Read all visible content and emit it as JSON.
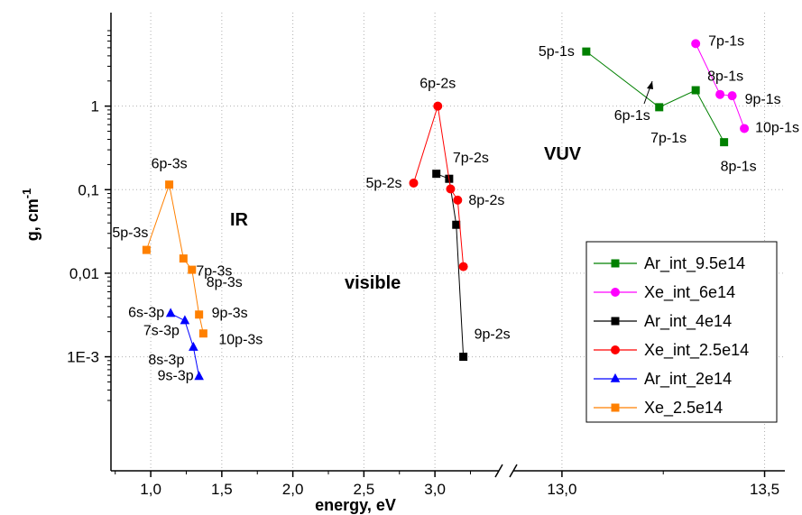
{
  "chart_data": {
    "type": "line",
    "xlabel": "energy, eV",
    "ylabel": "g, cm",
    "ylabel_sup": "-1",
    "y_scale": "log",
    "ylim": [
      0.0003,
      8
    ],
    "x_axis_break": true,
    "x_segments": [
      {
        "range": [
          0.72,
          3.45
        ],
        "ticks": [
          1.0,
          1.5,
          2.0,
          2.5,
          3.0
        ],
        "tick_labels": [
          "1,0",
          "1,5",
          "2,0",
          "2,5",
          "3,0"
        ]
      },
      {
        "range": [
          12.88,
          13.55
        ],
        "ticks": [
          13.0,
          13.5
        ],
        "tick_labels": [
          "13,0",
          "13,5"
        ]
      }
    ],
    "y_ticks": [
      0.001,
      0.01,
      0.1,
      1
    ],
    "y_tick_labels": [
      "1E-3",
      "0,01",
      "0,1",
      "1"
    ],
    "grid": "dotted",
    "legend_position": "bottom-right",
    "series": [
      {
        "name": "Ar_int_9.5e14",
        "color": "#008000",
        "marker": "square",
        "points": [
          {
            "x": 13.06,
            "y": 4.5,
            "label": "5p-1s"
          },
          {
            "x": 13.24,
            "y": 0.97,
            "label": "6p-1s"
          },
          {
            "x": 13.33,
            "y": 1.55,
            "label": "7p-1s"
          },
          {
            "x": 13.4,
            "y": 0.37,
            "label": "8p-1s"
          }
        ]
      },
      {
        "name": "Xe_int_6e14",
        "color": "#ff00ff",
        "marker": "circle",
        "points": [
          {
            "x": 13.33,
            "y": 5.6,
            "label": "7p-1s"
          },
          {
            "x": 13.39,
            "y": 1.38,
            "label": "8p-1s"
          },
          {
            "x": 13.42,
            "y": 1.33,
            "label": "9p-1s"
          },
          {
            "x": 13.45,
            "y": 0.54,
            "label": "10p-1s"
          }
        ]
      },
      {
        "name": "Ar_int_4e14",
        "color": "#000000",
        "marker": "square",
        "points": [
          {
            "x": 3.01,
            "y": 0.155,
            "label": ""
          },
          {
            "x": 3.1,
            "y": 0.135,
            "label": "7p-2s"
          },
          {
            "x": 3.15,
            "y": 0.038,
            "label": ""
          },
          {
            "x": 3.2,
            "y": 0.001,
            "label": "9p-2s"
          }
        ]
      },
      {
        "name": "Xe_int_2.5e14",
        "color": "#ff0000",
        "marker": "circle",
        "points": [
          {
            "x": 2.85,
            "y": 0.12,
            "label": "5p-2s"
          },
          {
            "x": 3.02,
            "y": 1.0,
            "label": "6p-2s"
          },
          {
            "x": 3.11,
            "y": 0.102,
            "label": ""
          },
          {
            "x": 3.16,
            "y": 0.075,
            "label": "8p-2s"
          },
          {
            "x": 3.2,
            "y": 0.012,
            "label": ""
          }
        ]
      },
      {
        "name": "Ar_int_2e14",
        "color": "#0000ff",
        "marker": "triangle",
        "points": [
          {
            "x": 1.14,
            "y": 0.0033,
            "label": "6s-3p"
          },
          {
            "x": 1.24,
            "y": 0.0027,
            "label": "7s-3p"
          },
          {
            "x": 1.3,
            "y": 0.0013,
            "label": "8s-3p"
          },
          {
            "x": 1.34,
            "y": 0.00058,
            "label": "9s-3p"
          }
        ]
      },
      {
        "name": "Xe_2.5e14",
        "color": "#ff8000",
        "marker": "square",
        "points": [
          {
            "x": 0.97,
            "y": 0.019,
            "label": "5p-3s"
          },
          {
            "x": 1.13,
            "y": 0.115,
            "label": "6p-3s"
          },
          {
            "x": 1.23,
            "y": 0.015,
            "label": "7p-3s"
          },
          {
            "x": 1.29,
            "y": 0.011,
            "label": "8p-3s"
          },
          {
            "x": 1.34,
            "y": 0.0032,
            "label": "9p-3s"
          },
          {
            "x": 1.37,
            "y": 0.0019,
            "label": "10p-3s"
          }
        ]
      }
    ],
    "annotations": [
      "IR",
      "visible",
      "VUV"
    ]
  }
}
